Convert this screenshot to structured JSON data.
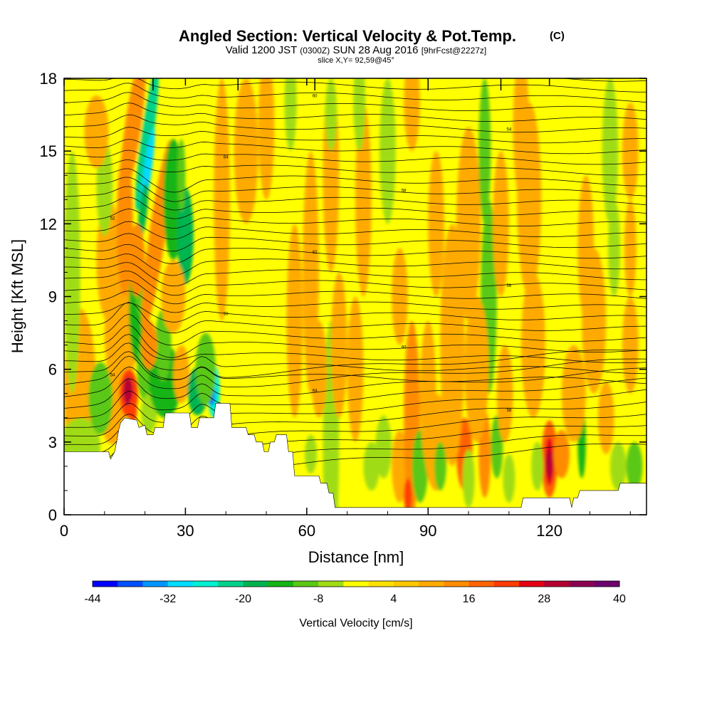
{
  "chart_data": {
    "type": "heatmap",
    "title": "Angled Section: Vertical Velocity & Pot.Temp.",
    "title_unit": "(C)",
    "subtitle": {
      "prefix": "Valid 1200 JST",
      "zulu": "(0300Z)",
      "date": "SUN 28 Aug 2016",
      "forecast": "[9hrFcst@2227z]"
    },
    "slice_label": "slice X,Y= 92,59@45°",
    "xlabel": "Distance [nm]",
    "ylabel": "Height [Kft MSL]",
    "xlim": [
      0,
      144
    ],
    "ylim": [
      0,
      18
    ],
    "x_ticks": [
      0,
      30,
      60,
      90,
      120
    ],
    "y_ticks": [
      0,
      3,
      6,
      9,
      12,
      15,
      18
    ],
    "colorbar": {
      "label": "Vertical Velocity [cm/s]",
      "min": -44,
      "max": 40,
      "step": 4,
      "tick_labels": [
        -44,
        -32,
        -20,
        -8,
        4,
        16,
        28,
        40
      ],
      "colors": [
        "#0000ff",
        "#0050ff",
        "#0096ff",
        "#00dcff",
        "#00f0d2",
        "#00d28c",
        "#00b450",
        "#14b414",
        "#5ac814",
        "#a0dc14",
        "#ffff00",
        "#ffe100",
        "#ffc800",
        "#ffaa00",
        "#ff8c00",
        "#ff6400",
        "#ff3c00",
        "#e60014",
        "#b40032",
        "#8c0050",
        "#6e006e"
      ]
    },
    "terrain_kft": [
      [
        0,
        2.6
      ],
      [
        11,
        2.6
      ],
      [
        11.5,
        2.3
      ],
      [
        12.5,
        2.6
      ],
      [
        13,
        3.0
      ],
      [
        13.5,
        3.5
      ],
      [
        14,
        3.8
      ],
      [
        15,
        4.0
      ],
      [
        18,
        3.9
      ],
      [
        18.5,
        3.6
      ],
      [
        20,
        3.7
      ],
      [
        20.5,
        3.3
      ],
      [
        22,
        3.3
      ],
      [
        22.5,
        3.6
      ],
      [
        24.5,
        3.6
      ],
      [
        25,
        4.2
      ],
      [
        31,
        4.2
      ],
      [
        31.5,
        3.6
      ],
      [
        33,
        3.6
      ],
      [
        33.5,
        4.0
      ],
      [
        37,
        4.0
      ],
      [
        37.5,
        4.6
      ],
      [
        41,
        4.6
      ],
      [
        41.5,
        3.6
      ],
      [
        45,
        3.6
      ],
      [
        45.5,
        3.3
      ],
      [
        47,
        3.3
      ],
      [
        47.5,
        3.0
      ],
      [
        49,
        3.0
      ],
      [
        49.5,
        2.6
      ],
      [
        50.5,
        2.6
      ],
      [
        51,
        3.0
      ],
      [
        52,
        3.0
      ],
      [
        52.5,
        3.3
      ],
      [
        55,
        3.3
      ],
      [
        55.5,
        2.6
      ],
      [
        56.5,
        2.6
      ],
      [
        57,
        1.6
      ],
      [
        63,
        1.6
      ],
      [
        63.5,
        1.3
      ],
      [
        65,
        1.3
      ],
      [
        65.5,
        0.9
      ],
      [
        66.5,
        0.9
      ],
      [
        67,
        0.3
      ],
      [
        113,
        0.3
      ],
      [
        113.5,
        0.7
      ],
      [
        125,
        0.7
      ],
      [
        125.5,
        0.3
      ],
      [
        126,
        0.7
      ],
      [
        127,
        0.7
      ],
      [
        127.5,
        1.0
      ],
      [
        137,
        1.0
      ],
      [
        137.5,
        1.3
      ],
      [
        144,
        1.3
      ]
    ],
    "theta_labels_c": [
      "50",
      "52",
      "54",
      "56",
      "58",
      "60",
      "62",
      "64"
    ],
    "wind_barbs_visible": true
  }
}
